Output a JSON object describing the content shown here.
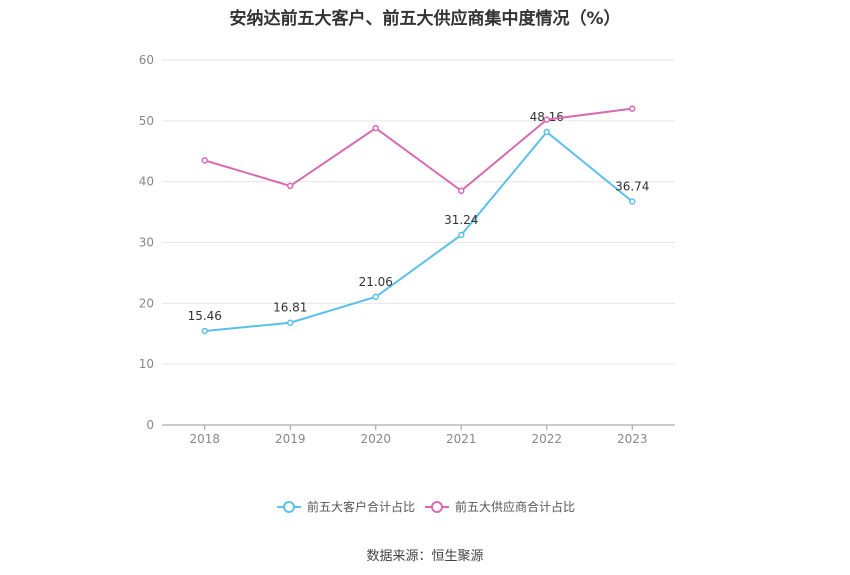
{
  "title": "安纳达前五大客户、前五大供应商集中度情况（%）",
  "source": "数据来源：恒生聚源",
  "chart_data": {
    "type": "line",
    "x": [
      "2018",
      "2019",
      "2020",
      "2021",
      "2022",
      "2023"
    ],
    "ylim": [
      0,
      60
    ],
    "yticks": [
      0,
      10,
      20,
      30,
      40,
      50,
      60
    ],
    "grid": true,
    "legend_position": "bottom",
    "series": [
      {
        "name": "前五大客户合计占比",
        "color": "#5bc0eb",
        "values": [
          15.46,
          16.81,
          21.06,
          31.24,
          48.16,
          36.74
        ],
        "labels": [
          "15.46",
          "16.81",
          "21.06",
          "31.24",
          "48.16",
          "36.74"
        ]
      },
      {
        "name": "前五大供应商合计占比",
        "color": "#d66bb0",
        "values": [
          43.5,
          39.3,
          48.8,
          38.5,
          50.2,
          52.0
        ]
      }
    ]
  }
}
